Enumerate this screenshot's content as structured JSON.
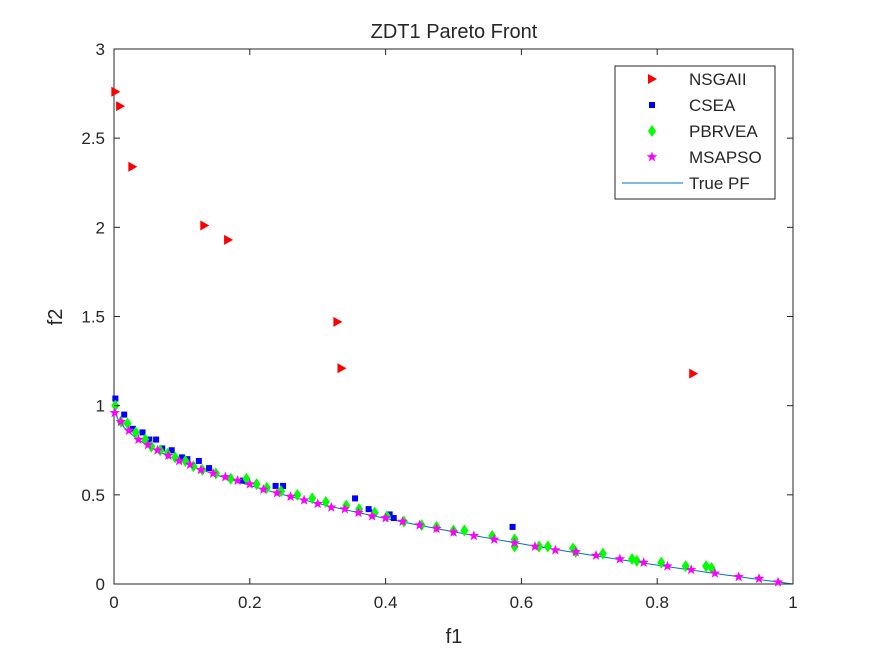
{
  "chart_data": {
    "type": "scatter",
    "title": "ZDT1 Pareto Front",
    "xlabel": "f1",
    "ylabel": "f2",
    "xlim": [
      0,
      1
    ],
    "ylim": [
      0,
      3
    ],
    "xticks": [
      0,
      0.2,
      0.4,
      0.6,
      0.8,
      1
    ],
    "xtick_labels": [
      "0",
      "0.2",
      "0.4",
      "0.6",
      "0.8",
      "1"
    ],
    "yticks": [
      0,
      0.5,
      1,
      1.5,
      2,
      2.5,
      3
    ],
    "ytick_labels": [
      "0",
      "0.5",
      "1",
      "1.5",
      "2",
      "2.5",
      "3"
    ],
    "grid": false,
    "legend_position": "top-right",
    "series": [
      {
        "name": "NSGAII",
        "marker": "triangle-right",
        "color": "#ff0000",
        "points": [
          [
            0.002,
            2.76
          ],
          [
            0.009,
            2.68
          ],
          [
            0.027,
            2.34
          ],
          [
            0.133,
            2.01
          ],
          [
            0.168,
            1.93
          ],
          [
            0.329,
            1.47
          ],
          [
            0.335,
            1.21
          ],
          [
            0.853,
            1.18
          ]
        ]
      },
      {
        "name": "CSEA",
        "marker": "square",
        "color": "#0000ff",
        "points": [
          [
            0.002,
            1.04
          ],
          [
            0.015,
            0.95
          ],
          [
            0.028,
            0.87
          ],
          [
            0.042,
            0.85
          ],
          [
            0.052,
            0.81
          ],
          [
            0.062,
            0.81
          ],
          [
            0.071,
            0.76
          ],
          [
            0.085,
            0.75
          ],
          [
            0.1,
            0.71
          ],
          [
            0.108,
            0.7
          ],
          [
            0.125,
            0.69
          ],
          [
            0.14,
            0.65
          ],
          [
            0.19,
            0.58
          ],
          [
            0.238,
            0.55
          ],
          [
            0.249,
            0.55
          ],
          [
            0.355,
            0.48
          ],
          [
            0.375,
            0.42
          ],
          [
            0.383,
            0.4
          ],
          [
            0.406,
            0.39
          ],
          [
            0.412,
            0.37
          ],
          [
            0.587,
            0.32
          ]
        ]
      },
      {
        "name": "PBRVEA",
        "marker": "diamond",
        "color": "#00ff00",
        "points": [
          [
            0.002,
            1.0
          ],
          [
            0.01,
            0.91
          ],
          [
            0.02,
            0.9
          ],
          [
            0.032,
            0.85
          ],
          [
            0.046,
            0.81
          ],
          [
            0.055,
            0.77
          ],
          [
            0.068,
            0.75
          ],
          [
            0.079,
            0.73
          ],
          [
            0.09,
            0.71
          ],
          [
            0.105,
            0.69
          ],
          [
            0.117,
            0.66
          ],
          [
            0.13,
            0.64
          ],
          [
            0.15,
            0.62
          ],
          [
            0.172,
            0.59
          ],
          [
            0.195,
            0.59
          ],
          [
            0.21,
            0.56
          ],
          [
            0.225,
            0.54
          ],
          [
            0.246,
            0.52
          ],
          [
            0.27,
            0.5
          ],
          [
            0.292,
            0.48
          ],
          [
            0.312,
            0.46
          ],
          [
            0.342,
            0.44
          ],
          [
            0.361,
            0.42
          ],
          [
            0.384,
            0.4
          ],
          [
            0.402,
            0.38
          ],
          [
            0.427,
            0.35
          ],
          [
            0.453,
            0.33
          ],
          [
            0.475,
            0.32
          ],
          [
            0.5,
            0.3
          ],
          [
            0.516,
            0.3
          ],
          [
            0.557,
            0.27
          ],
          [
            0.59,
            0.25
          ],
          [
            0.59,
            0.21
          ],
          [
            0.626,
            0.21
          ],
          [
            0.639,
            0.21
          ],
          [
            0.676,
            0.2
          ],
          [
            0.68,
            0.18
          ],
          [
            0.72,
            0.17
          ],
          [
            0.763,
            0.14
          ],
          [
            0.77,
            0.13
          ],
          [
            0.806,
            0.12
          ],
          [
            0.842,
            0.1
          ],
          [
            0.872,
            0.1
          ],
          [
            0.88,
            0.09
          ]
        ]
      },
      {
        "name": "MSAPSO",
        "marker": "star",
        "color": "#ff00ff",
        "points": [
          [
            0.001,
            0.96
          ],
          [
            0.01,
            0.91
          ],
          [
            0.022,
            0.86
          ],
          [
            0.036,
            0.81
          ],
          [
            0.05,
            0.78
          ],
          [
            0.064,
            0.75
          ],
          [
            0.08,
            0.72
          ],
          [
            0.096,
            0.69
          ],
          [
            0.112,
            0.67
          ],
          [
            0.128,
            0.64
          ],
          [
            0.146,
            0.62
          ],
          [
            0.164,
            0.6
          ],
          [
            0.182,
            0.58
          ],
          [
            0.2,
            0.56
          ],
          [
            0.22,
            0.53
          ],
          [
            0.24,
            0.51
          ],
          [
            0.26,
            0.49
          ],
          [
            0.28,
            0.47
          ],
          [
            0.3,
            0.45
          ],
          [
            0.32,
            0.43
          ],
          [
            0.34,
            0.42
          ],
          [
            0.36,
            0.4
          ],
          [
            0.38,
            0.38
          ],
          [
            0.4,
            0.37
          ],
          [
            0.425,
            0.35
          ],
          [
            0.45,
            0.33
          ],
          [
            0.475,
            0.31
          ],
          [
            0.5,
            0.29
          ],
          [
            0.53,
            0.27
          ],
          [
            0.56,
            0.25
          ],
          [
            0.59,
            0.23
          ],
          [
            0.62,
            0.21
          ],
          [
            0.65,
            0.19
          ],
          [
            0.68,
            0.18
          ],
          [
            0.71,
            0.16
          ],
          [
            0.745,
            0.14
          ],
          [
            0.78,
            0.12
          ],
          [
            0.815,
            0.1
          ],
          [
            0.85,
            0.08
          ],
          [
            0.885,
            0.06
          ],
          [
            0.92,
            0.04
          ],
          [
            0.95,
            0.03
          ],
          [
            0.978,
            0.01
          ]
        ]
      },
      {
        "name": "True PF",
        "marker": "line",
        "color": "#0072bd",
        "function": "1 - sqrt(f1)"
      }
    ]
  }
}
